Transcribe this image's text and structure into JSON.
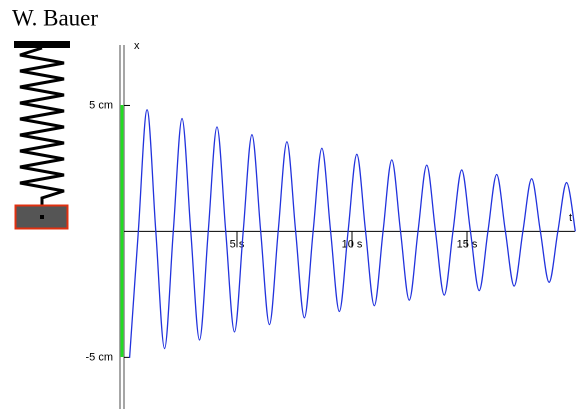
{
  "chart_data": {
    "type": "line",
    "title": "W. Bauer",
    "x_label": "t",
    "y_label": "x",
    "xlim": [
      0,
      20
    ],
    "ylim": [
      -7.05,
      7.4
    ],
    "xticks": [
      {
        "value": 5,
        "label": "5 s"
      },
      {
        "value": 10,
        "label": "10 s"
      },
      {
        "value": 15,
        "label": "15 s"
      }
    ],
    "yticks": [
      {
        "value": 5,
        "label": "5 cm"
      },
      {
        "value": -5,
        "label": "-5 cm"
      }
    ],
    "series": [
      {
        "color": "#2233dd",
        "x": [
          0.33,
          0.71,
          1.09,
          1.47,
          1.85,
          2.23,
          2.61,
          2.99,
          3.37,
          3.75,
          4.13,
          4.51,
          4.89,
          5.27,
          5.65,
          6.03,
          6.41,
          6.79,
          7.17,
          7.55,
          7.93,
          8.31,
          8.69,
          9.07,
          9.45,
          9.83,
          10.21,
          10.59,
          10.97,
          11.35,
          11.73,
          12.11,
          12.49,
          12.87,
          13.25,
          13.63,
          14.01,
          14.39,
          14.77,
          15.15,
          15.53,
          15.91,
          16.29,
          16.67,
          17.05,
          17.43,
          17.81,
          18.19,
          18.57,
          18.95,
          19.33,
          19.71
        ],
        "values": [
          -5.02,
          0,
          4.83,
          0,
          -4.65,
          0,
          4.48,
          0,
          -4.31,
          0,
          4.15,
          0,
          -3.99,
          0,
          3.84,
          0,
          -3.7,
          0,
          3.56,
          0,
          -3.43,
          0,
          3.3,
          0,
          -3.18,
          0,
          3.06,
          0,
          -2.95,
          0,
          2.84,
          0,
          -2.73,
          0,
          2.63,
          0,
          -2.53,
          0,
          2.44,
          0,
          -2.35,
          0,
          2.26,
          0,
          -2.17,
          0,
          2.09,
          0,
          -2.02,
          0,
          1.94,
          0
        ]
      }
    ]
  }
}
